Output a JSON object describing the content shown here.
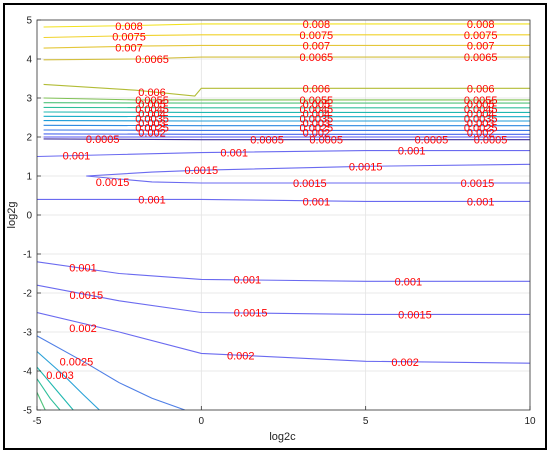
{
  "chart_data": {
    "type": "contour",
    "title": "",
    "xlabel": "log2c",
    "ylabel": "log2g",
    "xlim": [
      -5,
      10
    ],
    "ylim": [
      -5,
      5
    ],
    "x_ticks": [
      "-5",
      "0",
      "5",
      "10"
    ],
    "y_ticks": [
      "-5",
      "-4",
      "-3",
      "-2",
      "-1",
      "0",
      "1",
      "2",
      "3",
      "4",
      "5"
    ],
    "grid": true,
    "colormap": "parula",
    "levels": [
      {
        "value": 0.008,
        "label": "0.008",
        "color": "#f2e21e",
        "y_at_x": [
          [
            -4.8,
            4.82
          ],
          [
            -2.0,
            4.86
          ],
          [
            0.0,
            4.9
          ],
          [
            10,
            4.9
          ]
        ]
      },
      {
        "value": 0.0075,
        "label": "0.0075",
        "color": "#f0d22a",
        "y_at_x": [
          [
            -4.8,
            4.55
          ],
          [
            -2.0,
            4.6
          ],
          [
            0.0,
            4.62
          ],
          [
            10,
            4.62
          ]
        ]
      },
      {
        "value": 0.007,
        "label": "0.007",
        "color": "#e4c73a",
        "y_at_x": [
          [
            -4.8,
            4.28
          ],
          [
            -2.0,
            4.33
          ],
          [
            0.0,
            4.35
          ],
          [
            10,
            4.35
          ]
        ]
      },
      {
        "value": 0.0065,
        "label": "0.0065",
        "color": "#d3bf3e",
        "y_at_x": [
          [
            -4.8,
            3.98
          ],
          [
            -2.0,
            4.0
          ],
          [
            0.0,
            4.05
          ],
          [
            10,
            4.05
          ]
        ]
      },
      {
        "value": 0.006,
        "label": "0.006",
        "color": "#b2bc36",
        "y_at_x": [
          [
            -4.8,
            3.35
          ],
          [
            -2.0,
            3.2
          ],
          [
            -0.2,
            3.05
          ],
          [
            0.0,
            3.25
          ],
          [
            10,
            3.25
          ]
        ]
      },
      {
        "value": 0.0055,
        "label": "0.0055",
        "color": "#80c255",
        "y_at_x": [
          [
            -4.8,
            3.0
          ],
          [
            -2.0,
            2.95
          ],
          [
            0.0,
            2.95
          ],
          [
            10,
            2.95
          ]
        ]
      },
      {
        "value": 0.005,
        "label": "0.005",
        "color": "#4fc27a",
        "y_at_x": [
          [
            -4.8,
            2.88
          ],
          [
            0.0,
            2.87
          ],
          [
            10,
            2.87
          ]
        ]
      },
      {
        "value": 0.0045,
        "label": "0.0045",
        "color": "#2ebf9a",
        "y_at_x": [
          [
            -4.8,
            2.76
          ],
          [
            0.0,
            2.75
          ],
          [
            10,
            2.75
          ]
        ]
      },
      {
        "value": 0.004,
        "label": "0.004",
        "color": "#1fb8b0",
        "y_at_x": [
          [
            -4.8,
            2.64
          ],
          [
            0.0,
            2.63
          ],
          [
            10,
            2.63
          ]
        ]
      },
      {
        "value": 0.0035,
        "label": "0.0035",
        "color": "#14abc7",
        "y_at_x": [
          [
            -4.8,
            2.53
          ],
          [
            0.0,
            2.52
          ],
          [
            10,
            2.52
          ]
        ]
      },
      {
        "value": 0.003,
        "label": "0.003",
        "color": "#1c9bd8",
        "y_at_x": [
          [
            -4.8,
            2.42
          ],
          [
            0.0,
            2.41
          ],
          [
            10,
            2.41
          ]
        ]
      },
      {
        "value": 0.0025,
        "label": "0.0025",
        "color": "#2a88e0",
        "y_at_x": [
          [
            -4.8,
            2.3
          ],
          [
            0.0,
            2.29
          ],
          [
            10,
            2.29
          ]
        ]
      },
      {
        "value": 0.002,
        "label": "0.002",
        "color": "#3b77e8",
        "y_at_x": [
          [
            -4.8,
            2.18
          ],
          [
            0.0,
            2.17
          ],
          [
            10,
            2.17
          ]
        ]
      },
      {
        "value": 0.0015,
        "label": "0.0015",
        "color": "#4866ee",
        "y_at_x": [
          [
            -4.8,
            2.08
          ],
          [
            0.0,
            2.07
          ],
          [
            10,
            2.07
          ]
        ]
      },
      {
        "value": 0.001,
        "label": "0.001",
        "color": "#5656f0",
        "y_at_x": [
          [
            -4.8,
            2.0
          ],
          [
            0.0,
            2.0
          ],
          [
            10,
            2.0
          ]
        ]
      },
      {
        "value": 0.0005,
        "label": "0.0005",
        "color": "#3d2c9e",
        "y_at_x": [
          [
            -4.8,
            1.95
          ],
          [
            0.0,
            1.93
          ],
          [
            10,
            1.93
          ]
        ]
      },
      {
        "value": 0.001,
        "label": "0.001",
        "color": "#6a6af0",
        "y_at_x": [
          [
            -5,
            1.5
          ],
          [
            -2.5,
            1.55
          ],
          [
            0.0,
            1.6
          ],
          [
            5,
            1.65
          ],
          [
            10,
            1.65
          ]
        ]
      },
      {
        "value": 0.0015,
        "label": "0.0015",
        "color": "#6a6af0",
        "y_at_x": [
          [
            -3.5,
            1.0
          ],
          [
            -1.5,
            1.1
          ],
          [
            0.0,
            1.15
          ],
          [
            5,
            1.25
          ],
          [
            10,
            1.3
          ]
        ]
      },
      {
        "value": 0.0015,
        "label": "0.0015",
        "color": "#6a6af0",
        "y_at_x": [
          [
            -3.5,
            1.0
          ],
          [
            -1.5,
            0.85
          ],
          [
            0.0,
            0.82
          ],
          [
            5,
            0.82
          ],
          [
            10,
            0.82
          ]
        ]
      },
      {
        "value": 0.001,
        "label": "0.001",
        "color": "#6a6af0",
        "y_at_x": [
          [
            -5,
            0.4
          ],
          [
            -2.5,
            0.4
          ],
          [
            0.0,
            0.4
          ],
          [
            5,
            0.35
          ],
          [
            10,
            0.35
          ]
        ]
      },
      {
        "value": 0.001,
        "label": "0.001",
        "color": "#6a6af0",
        "y_at_x": [
          [
            -5,
            -1.2
          ],
          [
            -2.5,
            -1.5
          ],
          [
            0.0,
            -1.65
          ],
          [
            5,
            -1.7
          ],
          [
            10,
            -1.7
          ]
        ]
      },
      {
        "value": 0.0015,
        "label": "0.0015",
        "color": "#6a6af0",
        "y_at_x": [
          [
            -5,
            -1.8
          ],
          [
            -2.5,
            -2.2
          ],
          [
            0.0,
            -2.5
          ],
          [
            5,
            -2.55
          ],
          [
            10,
            -2.55
          ]
        ]
      },
      {
        "value": 0.002,
        "label": "0.002",
        "color": "#6a6af0",
        "y_at_x": [
          [
            -5,
            -2.5
          ],
          [
            -2.5,
            -3.0
          ],
          [
            0.0,
            -3.55
          ],
          [
            5,
            -3.75
          ],
          [
            10,
            -3.8
          ]
        ]
      },
      {
        "value": 0.0025,
        "label": "0.0025",
        "color": "#4f7fe6",
        "y_at_x": [
          [
            -5,
            -3.1
          ],
          [
            -3.5,
            -3.8
          ],
          [
            -2.5,
            -4.3
          ],
          [
            -1.5,
            -4.7
          ],
          [
            -0.5,
            -5.0
          ]
        ]
      },
      {
        "value": 0.003,
        "label": "0.003",
        "color": "#2aa2d8",
        "y_at_x": [
          [
            -5,
            -3.5
          ],
          [
            -4.2,
            -4.1
          ],
          [
            -3.6,
            -4.6
          ],
          [
            -3.1,
            -5.0
          ]
        ]
      },
      {
        "value": 0.0035,
        "label": "",
        "color": "#1fb8b0",
        "y_at_x": [
          [
            -5,
            -3.9
          ],
          [
            -4.4,
            -4.5
          ],
          [
            -3.9,
            -5.0
          ]
        ]
      },
      {
        "value": 0.004,
        "label": "",
        "color": "#2ebf9a",
        "y_at_x": [
          [
            -5,
            -4.2
          ],
          [
            -4.6,
            -4.7
          ],
          [
            -4.3,
            -5.0
          ]
        ]
      },
      {
        "value": 0.0045,
        "label": "",
        "color": "#4fc27a",
        "y_at_x": [
          [
            -5,
            -4.55
          ],
          [
            -4.75,
            -5.0
          ]
        ]
      }
    ],
    "labels": [
      {
        "text": "0.008",
        "x": -2.2,
        "y": 4.85
      },
      {
        "text": "0.008",
        "x": 3.5,
        "y": 4.9
      },
      {
        "text": "0.008",
        "x": 8.5,
        "y": 4.9
      },
      {
        "text": "0.0075",
        "x": -2.2,
        "y": 4.58
      },
      {
        "text": "0.0075",
        "x": 3.5,
        "y": 4.62
      },
      {
        "text": "0.0075",
        "x": 8.5,
        "y": 4.62
      },
      {
        "text": "0.007",
        "x": -2.2,
        "y": 4.3
      },
      {
        "text": "0.007",
        "x": 3.5,
        "y": 4.35
      },
      {
        "text": "0.007",
        "x": 8.5,
        "y": 4.35
      },
      {
        "text": "0.0065",
        "x": -1.5,
        "y": 4.0
      },
      {
        "text": "0.0065",
        "x": 3.5,
        "y": 4.05
      },
      {
        "text": "0.0065",
        "x": 8.5,
        "y": 4.05
      },
      {
        "text": "0.006",
        "x": -1.5,
        "y": 3.15
      },
      {
        "text": "0.006",
        "x": 3.5,
        "y": 3.25
      },
      {
        "text": "0.006",
        "x": 8.5,
        "y": 3.25
      },
      {
        "text": "0.0055",
        "x": -1.5,
        "y": 2.95
      },
      {
        "text": "0.0055",
        "x": 3.5,
        "y": 2.95
      },
      {
        "text": "0.0055",
        "x": 8.5,
        "y": 2.95
      },
      {
        "text": "0.005",
        "x": -1.5,
        "y": 2.85
      },
      {
        "text": "0.005",
        "x": 3.5,
        "y": 2.85
      },
      {
        "text": "0.005",
        "x": 8.5,
        "y": 2.85
      },
      {
        "text": "0.0045",
        "x": -1.5,
        "y": 2.72
      },
      {
        "text": "0.0045",
        "x": 3.5,
        "y": 2.72
      },
      {
        "text": "0.0045",
        "x": 8.5,
        "y": 2.72
      },
      {
        "text": "0.004",
        "x": -1.5,
        "y": 2.6
      },
      {
        "text": "0.004",
        "x": 3.5,
        "y": 2.6
      },
      {
        "text": "0.004",
        "x": 8.5,
        "y": 2.6
      },
      {
        "text": "0.0035",
        "x": -1.5,
        "y": 2.48
      },
      {
        "text": "0.0035",
        "x": 3.5,
        "y": 2.48
      },
      {
        "text": "0.0035",
        "x": 8.5,
        "y": 2.48
      },
      {
        "text": "0.003",
        "x": -1.5,
        "y": 2.36
      },
      {
        "text": "0.003",
        "x": 3.5,
        "y": 2.36
      },
      {
        "text": "0.003",
        "x": 8.5,
        "y": 2.36
      },
      {
        "text": "0.0025",
        "x": -1.5,
        "y": 2.24
      },
      {
        "text": "0.0025",
        "x": 3.5,
        "y": 2.24
      },
      {
        "text": "0.0025",
        "x": 8.5,
        "y": 2.24
      },
      {
        "text": "0.002",
        "x": -1.5,
        "y": 2.12
      },
      {
        "text": "0.002",
        "x": 3.5,
        "y": 2.12
      },
      {
        "text": "0.002",
        "x": 8.5,
        "y": 2.12
      },
      {
        "text": "0.0005",
        "x": -3.0,
        "y": 1.95
      },
      {
        "text": "0.0005",
        "x": 2.0,
        "y": 1.93
      },
      {
        "text": "0.0005",
        "x": 3.8,
        "y": 1.93
      },
      {
        "text": "0.0005",
        "x": 7.0,
        "y": 1.93
      },
      {
        "text": "0.0005",
        "x": 8.8,
        "y": 1.93
      },
      {
        "text": "0.001",
        "x": -3.8,
        "y": 1.52
      },
      {
        "text": "0.001",
        "x": 1.0,
        "y": 1.6
      },
      {
        "text": "0.001",
        "x": 6.4,
        "y": 1.65
      },
      {
        "text": "0.0015",
        "x": 0.0,
        "y": 1.15
      },
      {
        "text": "0.0015",
        "x": 5.0,
        "y": 1.25
      },
      {
        "text": "0.0015",
        "x": -2.7,
        "y": 0.85
      },
      {
        "text": "0.0015",
        "x": 3.3,
        "y": 0.82
      },
      {
        "text": "0.0015",
        "x": 8.4,
        "y": 0.82
      },
      {
        "text": "0.001",
        "x": -1.5,
        "y": 0.4
      },
      {
        "text": "0.001",
        "x": 3.5,
        "y": 0.35
      },
      {
        "text": "0.001",
        "x": 8.5,
        "y": 0.35
      },
      {
        "text": "0.001",
        "x": -3.6,
        "y": -1.35
      },
      {
        "text": "0.001",
        "x": 1.4,
        "y": -1.65
      },
      {
        "text": "0.001",
        "x": 6.3,
        "y": -1.7
      },
      {
        "text": "0.0015",
        "x": -3.5,
        "y": -2.05
      },
      {
        "text": "0.0015",
        "x": 1.5,
        "y": -2.5
      },
      {
        "text": "0.0015",
        "x": 6.5,
        "y": -2.55
      },
      {
        "text": "0.002",
        "x": -3.6,
        "y": -2.9
      },
      {
        "text": "0.002",
        "x": 1.2,
        "y": -3.6
      },
      {
        "text": "0.002",
        "x": 6.2,
        "y": -3.77
      },
      {
        "text": "0.0025",
        "x": -3.8,
        "y": -3.75
      },
      {
        "text": "0.003",
        "x": -4.3,
        "y": -4.1
      }
    ]
  }
}
